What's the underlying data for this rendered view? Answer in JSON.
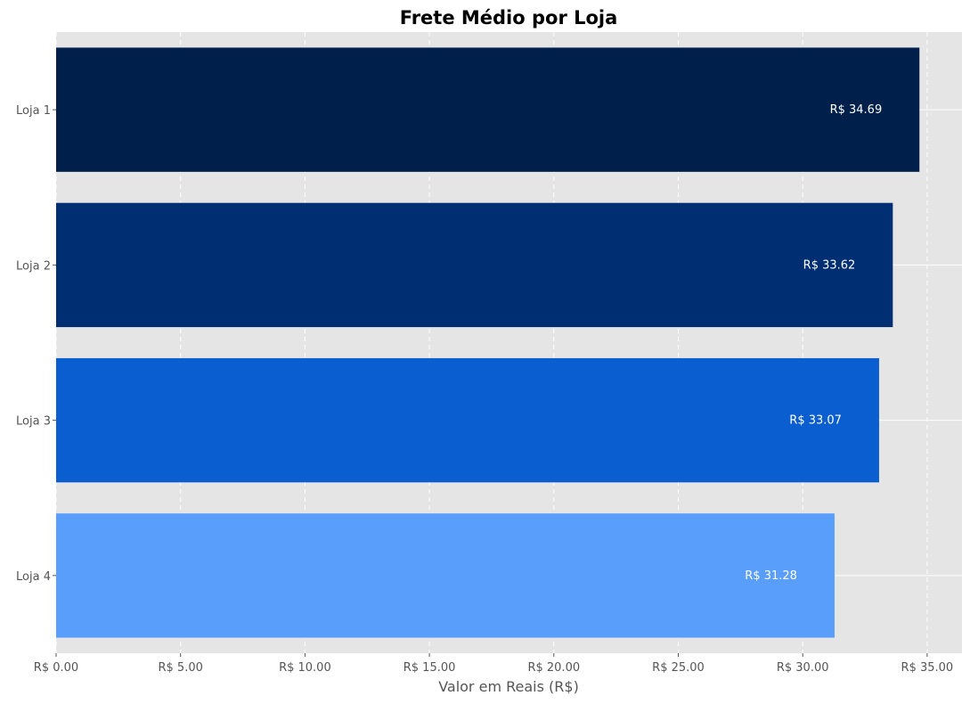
{
  "chart_data": {
    "type": "bar",
    "orientation": "horizontal",
    "title": "Frete Médio por Loja",
    "xlabel": "Valor em Reais (R$)",
    "ylabel": "",
    "categories": [
      "Loja 1",
      "Loja 2",
      "Loja 3",
      "Loja 4"
    ],
    "values": [
      34.69,
      33.62,
      33.07,
      31.28
    ],
    "value_labels": [
      "R$ 34.69",
      "R$ 33.62",
      "R$ 33.07",
      "R$ 31.28"
    ],
    "bar_colors": [
      "#001f4b",
      "#002e73",
      "#0a5ecf",
      "#5a9efc"
    ],
    "xlim": [
      0,
      36.4
    ],
    "xticks": [
      0,
      5,
      10,
      15,
      20,
      25,
      30,
      35
    ],
    "xtick_labels": [
      "R$ 0.00",
      "R$ 5.00",
      "R$ 10.00",
      "R$ 15.00",
      "R$ 20.00",
      "R$ 25.00",
      "R$ 30.00",
      "R$ 35.00"
    ],
    "grid": true,
    "background": "#e5e5e5"
  }
}
